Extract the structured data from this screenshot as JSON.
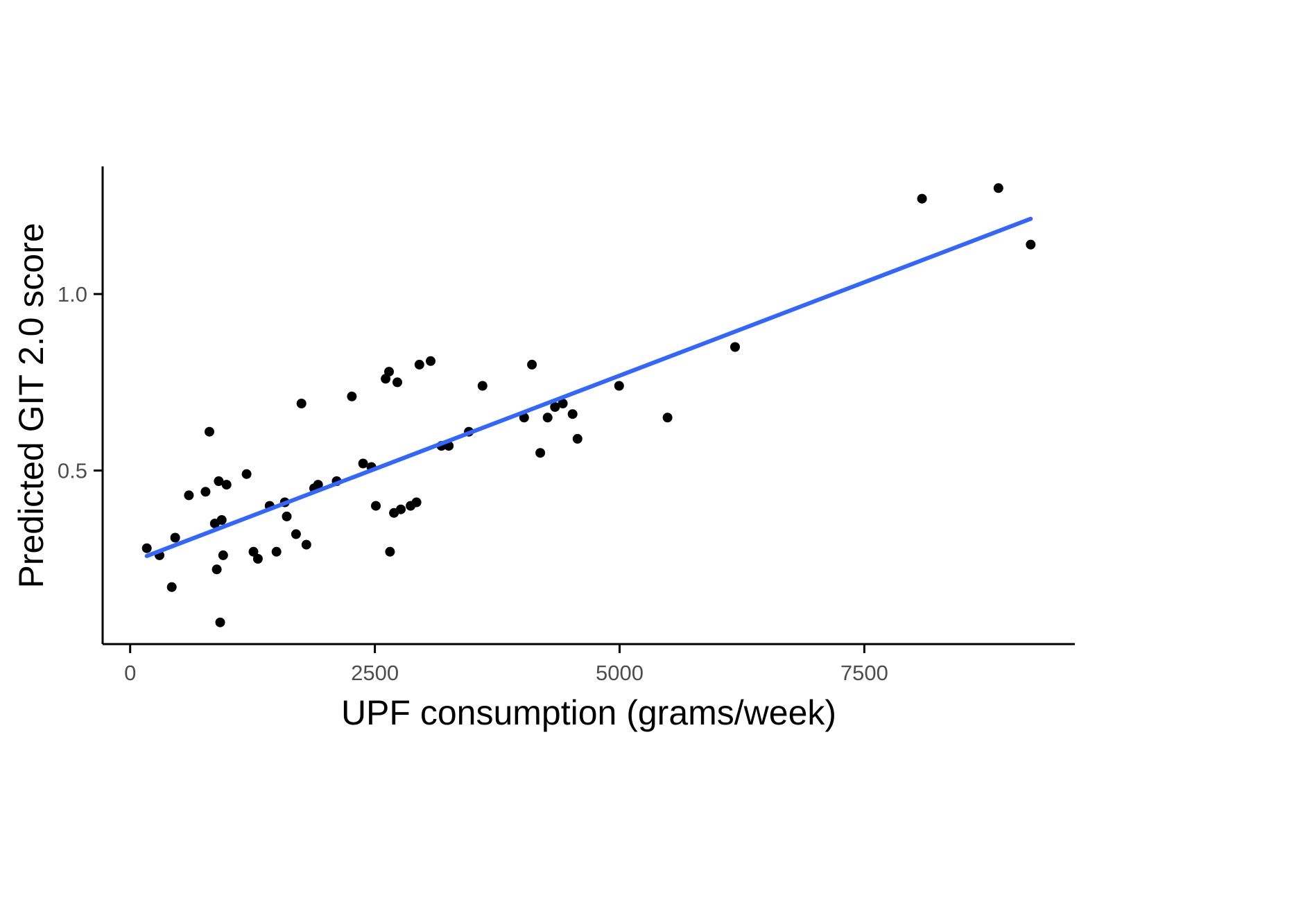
{
  "chart_data": {
    "type": "scatter",
    "xlabel": "UPF consumption (grams/week)",
    "ylabel": "Predicted GIT 2.0 score",
    "xlim": [
      -281,
      9651
    ],
    "ylim": [
      0.0085,
      1.3615
    ],
    "x_tick_values": [
      0,
      2500,
      5000,
      7500
    ],
    "x_tick_labels": [
      "0",
      "2500",
      "5000",
      "7500"
    ],
    "y_tick_values": [
      0.5,
      1.0
    ],
    "y_tick_labels": [
      "0.5",
      "1.0"
    ],
    "grid": false,
    "legend": "none",
    "point_color": "#000000",
    "axis_color": "#000000",
    "tick_label_color": "#4d4d4d",
    "background_color": "#ffffff",
    "points": [
      [
        170,
        0.28
      ],
      [
        300,
        0.26
      ],
      [
        425,
        0.17
      ],
      [
        460,
        0.31
      ],
      [
        600,
        0.43
      ],
      [
        770,
        0.44
      ],
      [
        810,
        0.61
      ],
      [
        865,
        0.35
      ],
      [
        885,
        0.22
      ],
      [
        905,
        0.47
      ],
      [
        920,
        0.07
      ],
      [
        935,
        0.36
      ],
      [
        950,
        0.26
      ],
      [
        985,
        0.46
      ],
      [
        1190,
        0.49
      ],
      [
        1260,
        0.27
      ],
      [
        1305,
        0.25
      ],
      [
        1425,
        0.4
      ],
      [
        1495,
        0.27
      ],
      [
        1580,
        0.41
      ],
      [
        1600,
        0.37
      ],
      [
        1695,
        0.32
      ],
      [
        1750,
        0.69
      ],
      [
        1800,
        0.29
      ],
      [
        1880,
        0.45
      ],
      [
        1920,
        0.46
      ],
      [
        2110,
        0.47
      ],
      [
        2265,
        0.71
      ],
      [
        2380,
        0.52
      ],
      [
        2465,
        0.51
      ],
      [
        2510,
        0.4
      ],
      [
        2610,
        0.76
      ],
      [
        2645,
        0.78
      ],
      [
        2655,
        0.27
      ],
      [
        2695,
        0.38
      ],
      [
        2730,
        0.75
      ],
      [
        2765,
        0.39
      ],
      [
        2865,
        0.4
      ],
      [
        2925,
        0.41
      ],
      [
        2955,
        0.8
      ],
      [
        3070,
        0.81
      ],
      [
        3180,
        0.57
      ],
      [
        3255,
        0.57
      ],
      [
        3460,
        0.61
      ],
      [
        3600,
        0.74
      ],
      [
        4025,
        0.65
      ],
      [
        4105,
        0.8
      ],
      [
        4190,
        0.55
      ],
      [
        4265,
        0.65
      ],
      [
        4340,
        0.68
      ],
      [
        4420,
        0.69
      ],
      [
        4520,
        0.66
      ],
      [
        4570,
        0.59
      ],
      [
        4995,
        0.74
      ],
      [
        5490,
        0.65
      ],
      [
        6180,
        0.85
      ],
      [
        8090,
        1.27
      ],
      [
        8870,
        1.3
      ],
      [
        9200,
        1.14
      ]
    ],
    "trend_line": {
      "type": "linear",
      "x1": 170,
      "y1": 0.258,
      "x2": 9200,
      "y2": 1.213,
      "color": "#3366FF"
    }
  }
}
